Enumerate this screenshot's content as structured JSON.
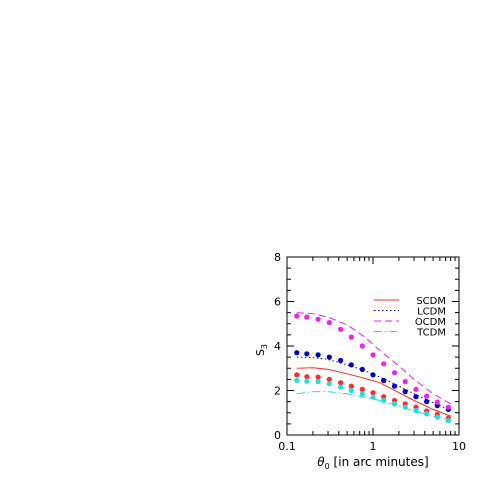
{
  "chart_data": {
    "type": "line",
    "xlabel_symbol": "θ",
    "xlabel_subscript": "0",
    "xlabel_rest": " [in arc minutes]",
    "ylabel_symbol": "S",
    "ylabel_subscript": "3",
    "xscale": "log",
    "xlim": [
      0.1,
      10
    ],
    "ylim": [
      0,
      8
    ],
    "x_ticks": [
      {
        "value": 0.1,
        "label": "0.1"
      },
      {
        "value": 1,
        "label": "1"
      },
      {
        "value": 10,
        "label": "10"
      }
    ],
    "y_ticks": [
      {
        "value": 0,
        "label": "0"
      },
      {
        "value": 2,
        "label": "2"
      },
      {
        "value": 4,
        "label": "4"
      },
      {
        "value": 6,
        "label": "6"
      },
      {
        "value": 8,
        "label": "8"
      }
    ],
    "legend_position": "upper-right",
    "series": [
      {
        "name": "SCDM",
        "color": "#ff2a2a",
        "dash": "solid",
        "curve": {
          "x": [
            0.13,
            0.2,
            0.3,
            0.5,
            0.8,
            1.2,
            2,
            3,
            5,
            8
          ],
          "y": [
            3.0,
            3.02,
            2.95,
            2.75,
            2.55,
            2.35,
            1.9,
            1.55,
            1.15,
            0.85
          ]
        },
        "points": {
          "x": [
            0.13,
            0.17,
            0.23,
            0.31,
            0.42,
            0.56,
            0.75,
            1.0,
            1.33,
            1.78,
            2.37,
            3.16,
            4.2,
            5.6,
            7.5
          ],
          "y": [
            2.7,
            2.62,
            2.6,
            2.5,
            2.35,
            2.2,
            2.05,
            1.9,
            1.72,
            1.55,
            1.4,
            1.25,
            1.08,
            0.92,
            0.75
          ]
        }
      },
      {
        "name": "LCDM",
        "color": "#0000cc",
        "dash": "dot",
        "curve": {
          "x": [
            0.13,
            0.2,
            0.3,
            0.5,
            0.8,
            1.2,
            2,
            3,
            5,
            8
          ],
          "y": [
            3.5,
            3.48,
            3.4,
            3.15,
            2.9,
            2.6,
            2.2,
            1.85,
            1.45,
            1.1
          ]
        },
        "points": {
          "x": [
            0.13,
            0.17,
            0.23,
            0.31,
            0.42,
            0.56,
            0.75,
            1.0,
            1.33,
            1.78,
            2.37,
            3.16,
            4.2,
            5.6,
            7.5
          ],
          "y": [
            3.7,
            3.65,
            3.6,
            3.5,
            3.35,
            3.15,
            2.95,
            2.7,
            2.45,
            2.2,
            1.95,
            1.72,
            1.5,
            1.32,
            1.15
          ]
        }
      },
      {
        "name": "OCDM",
        "color": "#ee22ee",
        "dash": "dash",
        "curve": {
          "x": [
            0.13,
            0.2,
            0.3,
            0.5,
            0.8,
            1.2,
            2,
            3,
            5,
            8
          ],
          "y": [
            5.5,
            5.45,
            5.3,
            4.95,
            4.4,
            3.8,
            3.1,
            2.5,
            1.85,
            1.4
          ]
        },
        "points": {
          "x": [
            0.13,
            0.17,
            0.23,
            0.31,
            0.42,
            0.56,
            0.75,
            1.0,
            1.33,
            1.78,
            2.37,
            3.16,
            4.2,
            5.6,
            7.5
          ],
          "y": [
            5.35,
            5.3,
            5.2,
            5.05,
            4.75,
            4.4,
            4.0,
            3.6,
            3.2,
            2.8,
            2.4,
            2.05,
            1.75,
            1.48,
            1.25
          ]
        }
      },
      {
        "name": "TCDM",
        "color": "#22dddd",
        "dash": "dashdot",
        "curve": {
          "x": [
            0.13,
            0.2,
            0.3,
            0.5,
            0.8,
            1.2,
            2,
            3,
            5,
            8
          ],
          "y": [
            1.85,
            1.95,
            1.95,
            1.85,
            1.7,
            1.55,
            1.3,
            1.08,
            0.85,
            0.65
          ]
        },
        "points": {
          "x": [
            0.13,
            0.17,
            0.23,
            0.31,
            0.42,
            0.56,
            0.75,
            1.0,
            1.33,
            1.78,
            2.37,
            3.16,
            4.2,
            5.6,
            7.5
          ],
          "y": [
            2.45,
            2.42,
            2.4,
            2.3,
            2.15,
            2.0,
            1.85,
            1.7,
            1.55,
            1.4,
            1.25,
            1.1,
            0.95,
            0.8,
            0.65
          ]
        }
      }
    ]
  }
}
